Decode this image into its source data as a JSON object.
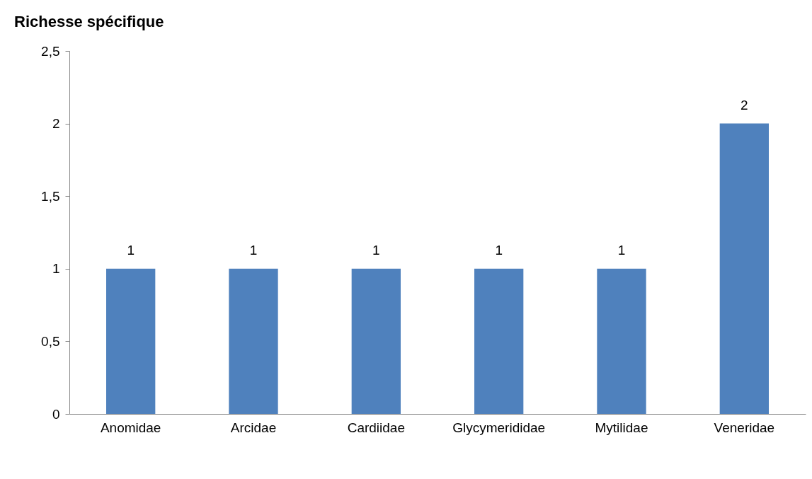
{
  "chart_data": {
    "type": "bar",
    "title": "Richesse spécifique",
    "categories": [
      "Anomidae",
      "Arcidae",
      "Cardiidae",
      "Glycymerididae",
      "Mytilidae",
      "Veneridae"
    ],
    "values": [
      1,
      1,
      1,
      1,
      1,
      2
    ],
    "color": "#4f81bd",
    "ylim": [
      0,
      2.5
    ],
    "yticks": [
      0,
      {
        "value": 0.5,
        "label": "0,5"
      },
      1,
      {
        "value": 1.5,
        "label": "1,5"
      },
      2,
      {
        "value": 2.5,
        "label": "2,5"
      }
    ],
    "data_labels": true
  }
}
